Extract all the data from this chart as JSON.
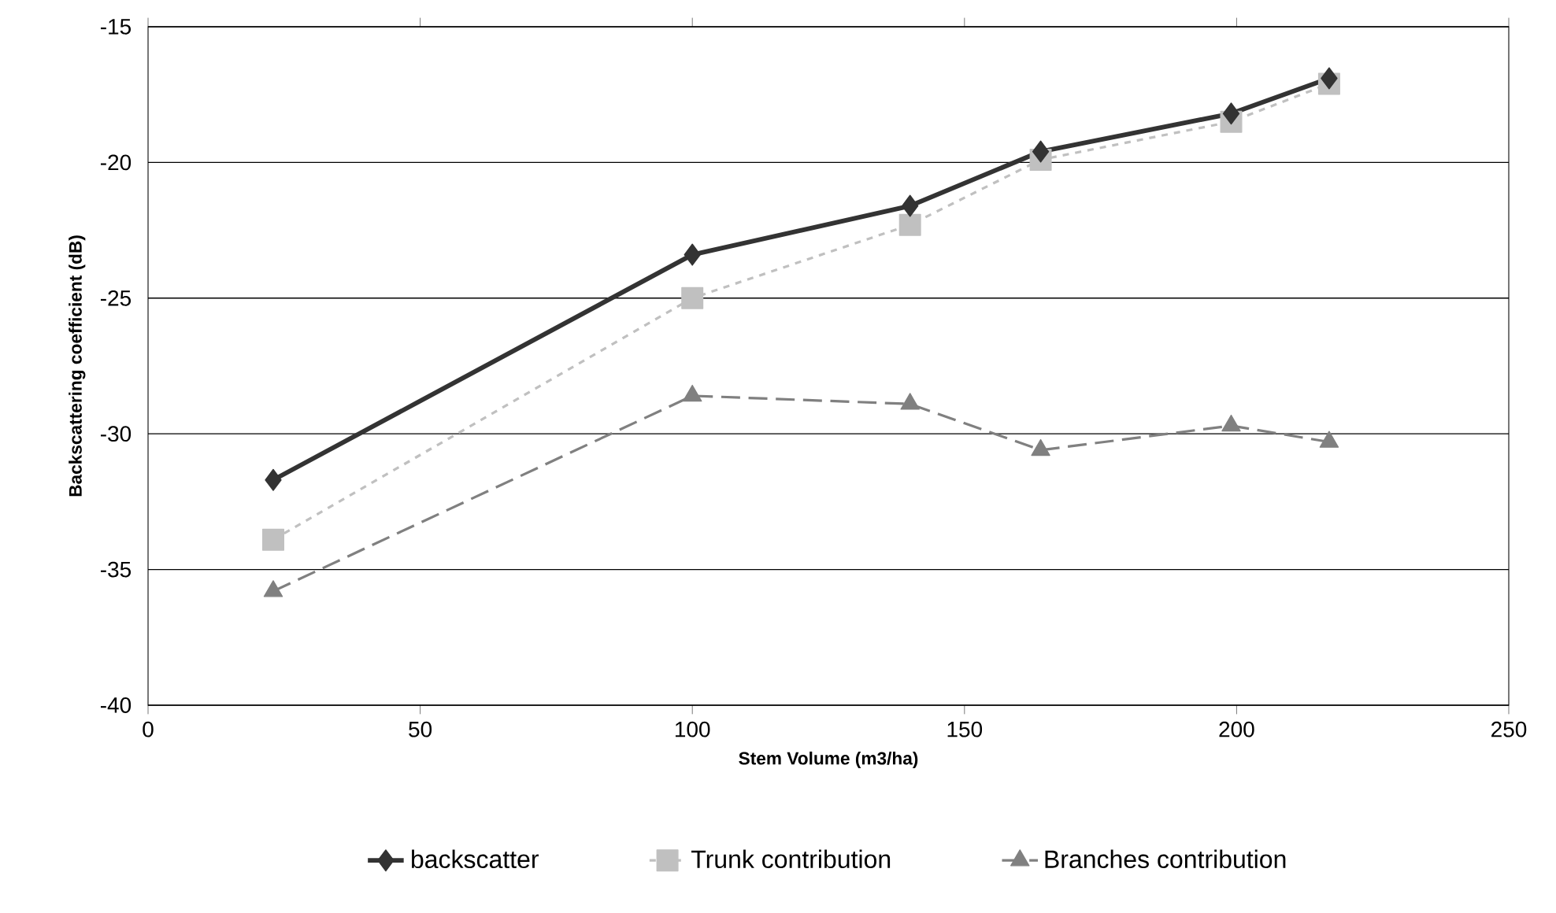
{
  "chart_data": {
    "type": "line",
    "xlabel": "Stem Volume (m3/ha)",
    "ylabel": "Backscattering coefficient (dB)",
    "x": [
      23,
      100,
      140,
      164,
      199,
      217
    ],
    "series": [
      {
        "name": "backscatter",
        "color": "#333333",
        "marker": "diamond",
        "line_style": "solid",
        "values": [
          -31.7,
          -23.4,
          -21.6,
          -19.6,
          -18.2,
          -16.9
        ]
      },
      {
        "name": "Trunk contribution",
        "color": "#c0c0c0",
        "marker": "square",
        "line_style": "dotted",
        "values": [
          -33.9,
          -25.0,
          -22.3,
          -19.9,
          -18.5,
          -17.1
        ]
      },
      {
        "name": "Branches contribution",
        "color": "#808080",
        "marker": "triangle",
        "line_style": "dashed",
        "values": [
          -35.8,
          -28.6,
          -28.9,
          -30.6,
          -29.7,
          -30.3
        ]
      }
    ],
    "xlim": [
      0,
      250
    ],
    "xticks": [
      0,
      50,
      100,
      150,
      200,
      250
    ],
    "ylim": [
      -40,
      -15
    ],
    "yticks": [
      -40,
      -35,
      -30,
      -25,
      -20,
      -15
    ],
    "grid": "y",
    "legend": "bottom"
  }
}
